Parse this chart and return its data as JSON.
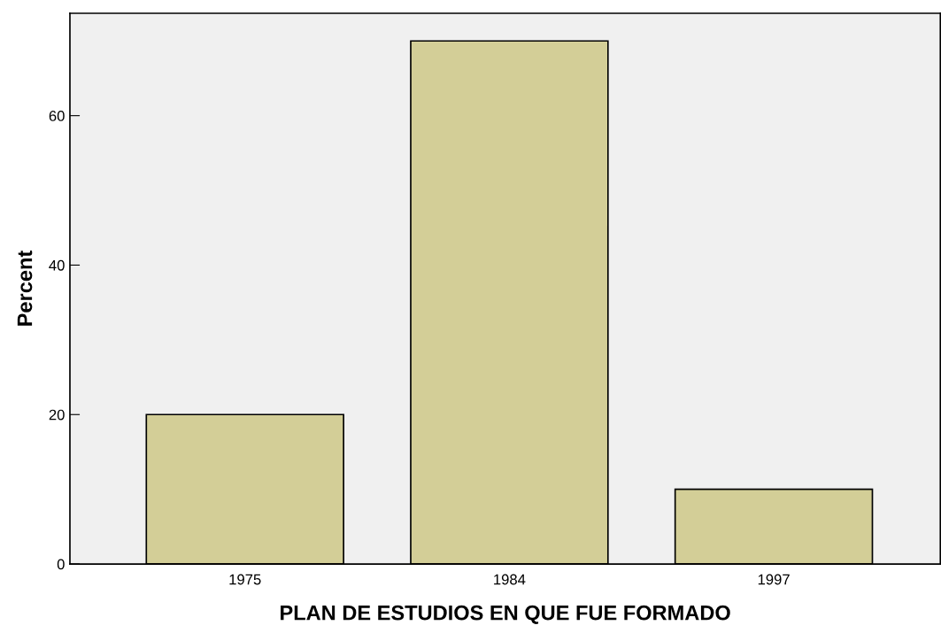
{
  "chart_data": {
    "type": "bar",
    "xlabel": "PLAN DE ESTUDIOS EN QUE FUE FORMADO",
    "ylabel": "Percent",
    "categories": [
      "1975",
      "1984",
      "1997"
    ],
    "values": [
      20,
      70,
      10
    ],
    "color": "#d3ce97",
    "ylim": [
      0,
      73.7
    ],
    "yticks": [
      0,
      20,
      40,
      60
    ],
    "grid": false
  }
}
